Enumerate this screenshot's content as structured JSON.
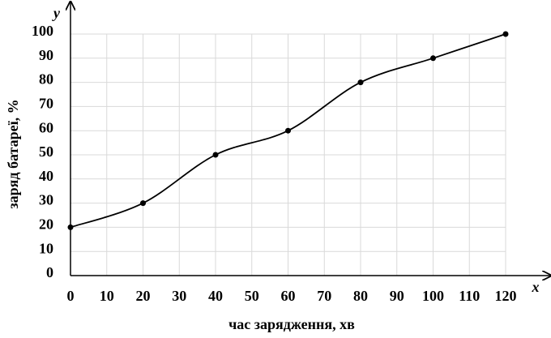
{
  "chart_data": {
    "type": "line",
    "x_axis_letter": "x",
    "y_axis_letter": "y",
    "xlabel": "час зарядження, хв",
    "ylabel": "заряд батареї, %",
    "x": [
      0,
      20,
      40,
      60,
      80,
      100,
      120
    ],
    "series": [
      {
        "color": "#000000",
        "values": [
          20,
          30,
          50,
          60,
          80,
          90,
          100
        ]
      }
    ],
    "xlim": [
      0,
      120
    ],
    "ylim": [
      0,
      100
    ],
    "xticks": [
      0,
      10,
      20,
      30,
      40,
      50,
      60,
      70,
      80,
      90,
      100,
      110,
      120
    ],
    "yticks": [
      0,
      10,
      20,
      30,
      40,
      50,
      60,
      70,
      80,
      90,
      100
    ],
    "grid": true,
    "smooth": true
  }
}
